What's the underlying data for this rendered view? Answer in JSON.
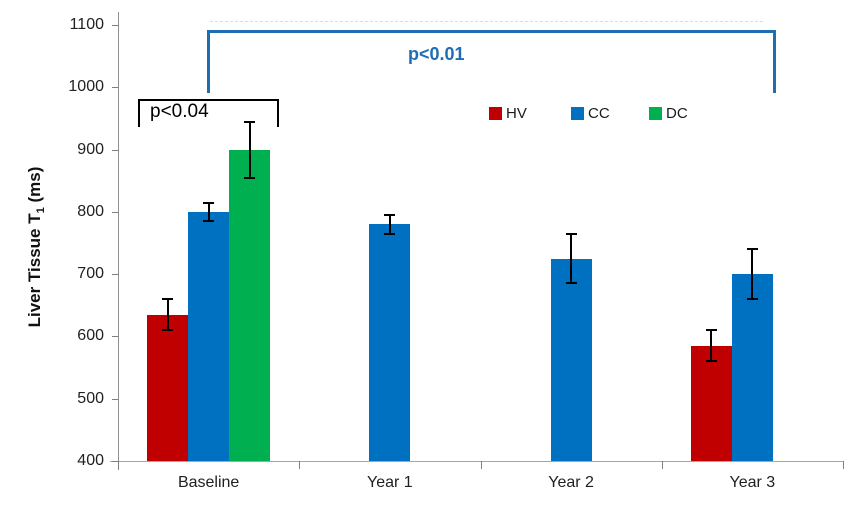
{
  "chart_data": {
    "type": "bar",
    "title": "",
    "ylabel": {
      "prefix": "Liver Tissue T",
      "sub": "1",
      "suffix": " (ms)"
    },
    "categories": [
      "Baseline",
      "Year 1",
      "Year 2",
      "Year 3"
    ],
    "series": [
      {
        "name": "HV",
        "color": "#C00000",
        "values": [
          635,
          null,
          null,
          585
        ],
        "errors": [
          25,
          null,
          null,
          25
        ]
      },
      {
        "name": "CC",
        "color": "#0070C0",
        "values": [
          800,
          780,
          725,
          700
        ],
        "errors": [
          15,
          15,
          40,
          40
        ]
      },
      {
        "name": "DC",
        "color": "#00B050",
        "values": [
          900,
          null,
          null,
          null
        ],
        "errors": [
          45,
          null,
          null,
          null
        ]
      }
    ],
    "ylim": [
      400,
      1100
    ],
    "ytick_step": 100,
    "yticks": [
      400,
      500,
      600,
      700,
      800,
      900,
      1000,
      1100
    ],
    "grid": false,
    "error_bar_color": "#000000",
    "legend": {
      "position": "inside-top-right",
      "entries": [
        "HV",
        "CC",
        "DC"
      ]
    },
    "annotations": [
      {
        "text": "p<0.04",
        "style": "bracket",
        "color": "#000000",
        "span": "Baseline HV to Baseline DC",
        "approx_y_ms": 980
      },
      {
        "text": "p<0.01",
        "style": "bracket",
        "color": "#1f6db3",
        "span": "Baseline CC to Year 3 CC",
        "approx_y_ms": 1090
      }
    ]
  }
}
